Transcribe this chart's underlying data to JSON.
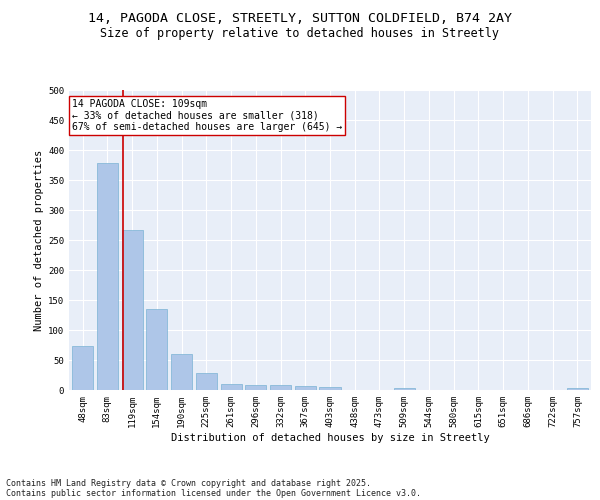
{
  "title_line1": "14, PAGODA CLOSE, STREETLY, SUTTON COLDFIELD, B74 2AY",
  "title_line2": "Size of property relative to detached houses in Streetly",
  "xlabel": "Distribution of detached houses by size in Streetly",
  "ylabel": "Number of detached properties",
  "bar_color": "#aec6e8",
  "bar_edge_color": "#7ab3d4",
  "background_color": "#e8eef8",
  "grid_color": "#ffffff",
  "categories": [
    "48sqm",
    "83sqm",
    "119sqm",
    "154sqm",
    "190sqm",
    "225sqm",
    "261sqm",
    "296sqm",
    "332sqm",
    "367sqm",
    "403sqm",
    "438sqm",
    "473sqm",
    "509sqm",
    "544sqm",
    "580sqm",
    "615sqm",
    "651sqm",
    "686sqm",
    "722sqm",
    "757sqm"
  ],
  "values": [
    73,
    378,
    266,
    135,
    60,
    29,
    10,
    9,
    9,
    7,
    5,
    0,
    0,
    3,
    0,
    0,
    0,
    0,
    0,
    0,
    4
  ],
  "vline_x": 1.62,
  "annotation_text": "14 PAGODA CLOSE: 109sqm\n← 33% of detached houses are smaller (318)\n67% of semi-detached houses are larger (645) →",
  "annotation_box_color": "#ffffff",
  "annotation_box_edge_color": "#cc0000",
  "annotation_text_color": "#000000",
  "vline_color": "#cc0000",
  "ylim": [
    0,
    500
  ],
  "yticks": [
    0,
    50,
    100,
    150,
    200,
    250,
    300,
    350,
    400,
    450,
    500
  ],
  "footnote_line1": "Contains HM Land Registry data © Crown copyright and database right 2025.",
  "footnote_line2": "Contains public sector information licensed under the Open Government Licence v3.0.",
  "title_fontsize": 9.5,
  "subtitle_fontsize": 8.5,
  "tick_fontsize": 6.5,
  "annotation_fontsize": 7,
  "footnote_fontsize": 6,
  "ylabel_fontsize": 7.5,
  "xlabel_fontsize": 7.5
}
